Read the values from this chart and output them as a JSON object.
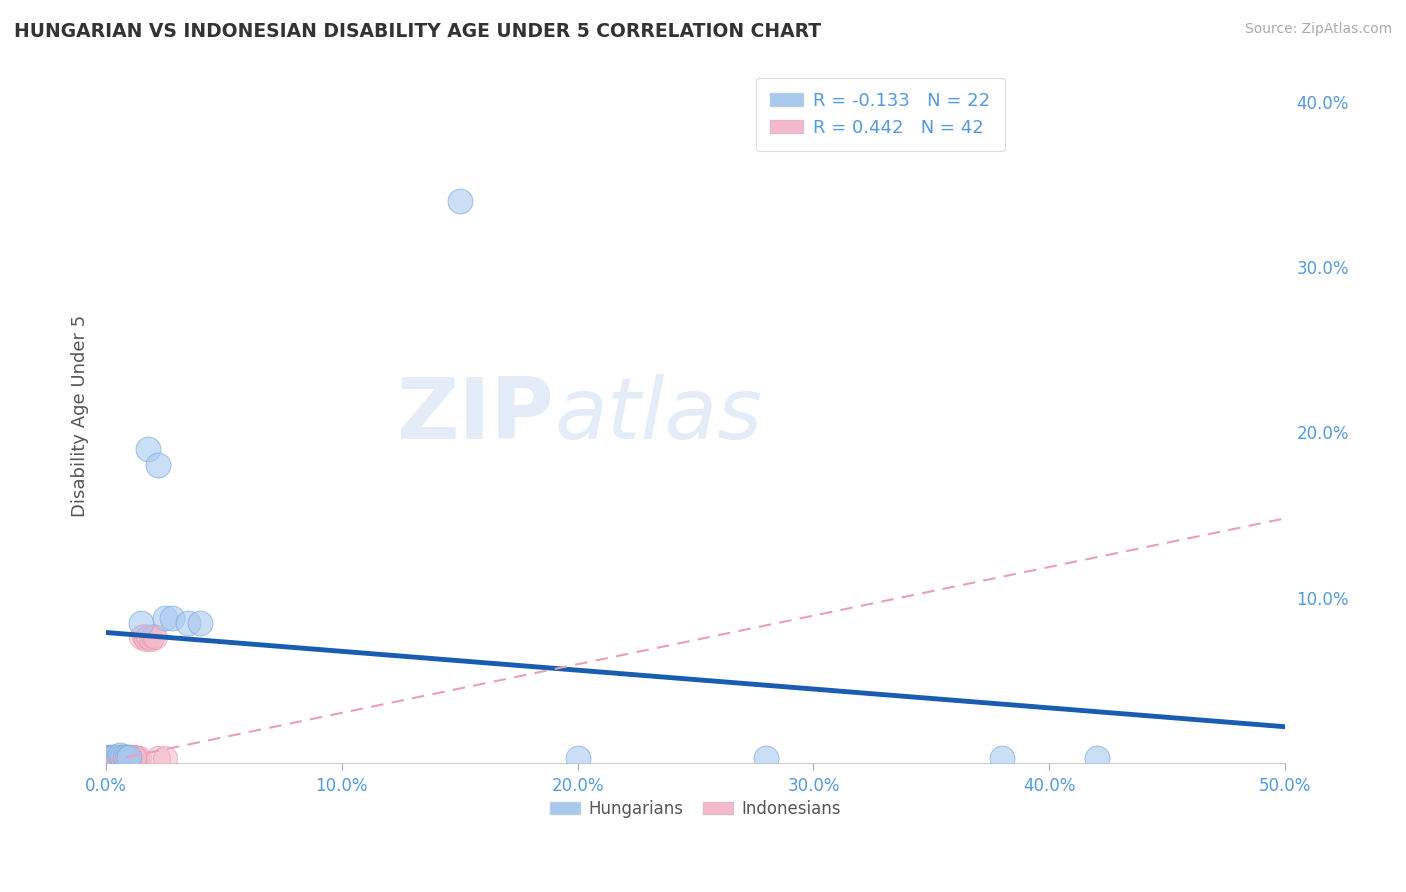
{
  "title": "HUNGARIAN VS INDONESIAN DISABILITY AGE UNDER 5 CORRELATION CHART",
  "source": "Source: ZipAtlas.com",
  "ylabel_label": "Disability Age Under 5",
  "xlim": [
    0.0,
    0.5
  ],
  "ylim": [
    0.0,
    0.42
  ],
  "xticks": [
    0.0,
    0.1,
    0.2,
    0.3,
    0.4,
    0.5
  ],
  "yticks": [
    0.1,
    0.2,
    0.3,
    0.4
  ],
  "ytick_labels_right": [
    "10.0%",
    "20.0%",
    "30.0%",
    "40.0%"
  ],
  "xtick_labels": [
    "0.0%",
    "10.0%",
    "20.0%",
    "30.0%",
    "40.0%",
    "50.0%"
  ],
  "legend_r1": "R = -0.133   N = 22",
  "legend_r2": "R = 0.442   N = 42",
  "hungarian_color": "#a8c8f0",
  "hungarian_edge_color": "#7aaad8",
  "indonesian_color": "#f5b8c8",
  "indonesian_edge_color": "#e890a8",
  "hungarian_line_color": "#1a5cb0",
  "indonesian_line_color": "#e8a0b8",
  "watermark_zip": "ZIP",
  "watermark_atlas": "atlas",
  "grid_color": "#cccccc",
  "tick_color": "#5599dd",
  "h_line_y0": 0.079,
  "h_line_y1": 0.022,
  "i_line_y0": 0.001,
  "i_line_y1": 0.148,
  "hungarian_points": [
    [
      0.001,
      0.003
    ],
    [
      0.002,
      0.004
    ],
    [
      0.003,
      0.003
    ],
    [
      0.004,
      0.004
    ],
    [
      0.005,
      0.003
    ],
    [
      0.006,
      0.005
    ],
    [
      0.007,
      0.004
    ],
    [
      0.008,
      0.004
    ],
    [
      0.009,
      0.003
    ],
    [
      0.01,
      0.004
    ],
    [
      0.015,
      0.085
    ],
    [
      0.018,
      0.19
    ],
    [
      0.022,
      0.18
    ],
    [
      0.025,
      0.088
    ],
    [
      0.028,
      0.088
    ],
    [
      0.035,
      0.085
    ],
    [
      0.04,
      0.085
    ],
    [
      0.15,
      0.34
    ],
    [
      0.2,
      0.003
    ],
    [
      0.28,
      0.003
    ],
    [
      0.38,
      0.003
    ],
    [
      0.42,
      0.003
    ]
  ],
  "indonesian_points": [
    [
      0.0,
      0.003
    ],
    [
      0.001,
      0.003
    ],
    [
      0.002,
      0.004
    ],
    [
      0.003,
      0.003
    ],
    [
      0.004,
      0.004
    ],
    [
      0.005,
      0.003
    ],
    [
      0.006,
      0.004
    ],
    [
      0.007,
      0.003
    ],
    [
      0.008,
      0.004
    ],
    [
      0.009,
      0.003
    ],
    [
      0.01,
      0.004
    ],
    [
      0.011,
      0.003
    ],
    [
      0.012,
      0.004
    ],
    [
      0.013,
      0.003
    ],
    [
      0.014,
      0.003
    ],
    [
      0.001,
      0.004
    ],
    [
      0.002,
      0.003
    ],
    [
      0.003,
      0.004
    ],
    [
      0.004,
      0.003
    ],
    [
      0.005,
      0.004
    ],
    [
      0.006,
      0.003
    ],
    [
      0.007,
      0.004
    ],
    [
      0.008,
      0.003
    ],
    [
      0.009,
      0.004
    ],
    [
      0.01,
      0.003
    ],
    [
      0.015,
      0.076
    ],
    [
      0.016,
      0.077
    ],
    [
      0.017,
      0.075
    ],
    [
      0.018,
      0.076
    ],
    [
      0.019,
      0.075
    ],
    [
      0.02,
      0.077
    ],
    [
      0.021,
      0.076
    ],
    [
      0.022,
      0.003
    ],
    [
      0.025,
      0.003
    ],
    [
      0.002,
      0.003
    ],
    [
      0.003,
      0.004
    ],
    [
      0.005,
      0.003
    ],
    [
      0.006,
      0.004
    ],
    [
      0.008,
      0.003
    ],
    [
      0.009,
      0.004
    ],
    [
      0.01,
      0.003
    ],
    [
      0.012,
      0.004
    ]
  ]
}
